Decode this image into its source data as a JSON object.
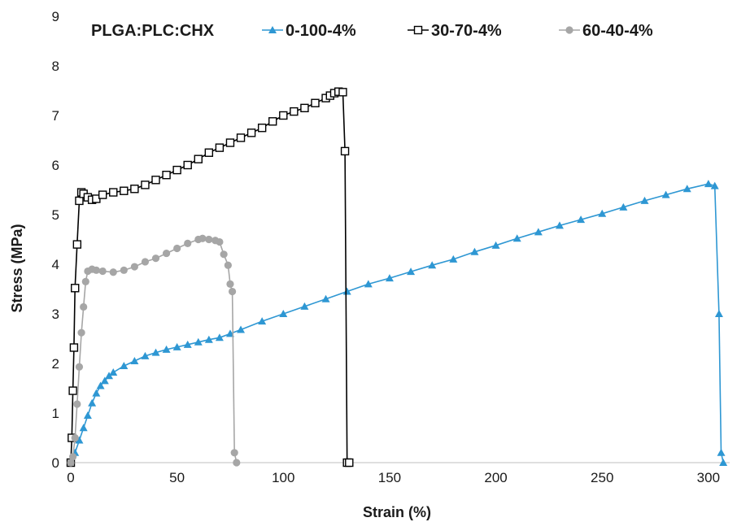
{
  "chart_data": {
    "type": "line",
    "title": "",
    "xlabel": "Strain (%)",
    "ylabel": "Stress (MPa)",
    "xlim": [
      0,
      310
    ],
    "ylim": [
      0,
      9
    ],
    "x_ticks": [
      0,
      50,
      100,
      150,
      200,
      250,
      300
    ],
    "y_ticks": [
      0,
      1,
      2,
      3,
      4,
      5,
      6,
      7,
      8,
      9
    ],
    "grid": false,
    "legend": {
      "placement": "top",
      "title": "PLGA:PLC:CHX"
    },
    "series": [
      {
        "name": "0-100-4%",
        "color": "#2e97d3",
        "marker": "triangle",
        "x": [
          0,
          2,
          4,
          6,
          8,
          10,
          12,
          14,
          16,
          18,
          20,
          25,
          30,
          35,
          40,
          45,
          50,
          55,
          60,
          65,
          70,
          75,
          80,
          90,
          100,
          110,
          120,
          130,
          140,
          150,
          160,
          170,
          180,
          190,
          200,
          210,
          220,
          230,
          240,
          250,
          260,
          270,
          280,
          290,
          300,
          303,
          305,
          306,
          307
        ],
        "y": [
          0,
          0.2,
          0.45,
          0.7,
          0.95,
          1.2,
          1.4,
          1.55,
          1.65,
          1.75,
          1.82,
          1.95,
          2.05,
          2.15,
          2.22,
          2.28,
          2.33,
          2.38,
          2.43,
          2.48,
          2.52,
          2.6,
          2.68,
          2.85,
          3.0,
          3.15,
          3.3,
          3.45,
          3.6,
          3.72,
          3.85,
          3.98,
          4.1,
          4.25,
          4.38,
          4.52,
          4.65,
          4.78,
          4.9,
          5.02,
          5.15,
          5.28,
          5.4,
          5.52,
          5.62,
          5.58,
          3.0,
          0.2,
          0
        ]
      },
      {
        "name": "30-70-4%",
        "color": "#000000",
        "marker": "square-open",
        "x": [
          0,
          0.5,
          1,
          1.5,
          2,
          3,
          4,
          5,
          6,
          8,
          10,
          12,
          15,
          20,
          25,
          30,
          35,
          40,
          45,
          50,
          55,
          60,
          65,
          70,
          75,
          80,
          85,
          90,
          95,
          100,
          105,
          110,
          115,
          120,
          122,
          124,
          126,
          128,
          129,
          130,
          131
        ],
        "y": [
          0,
          0.5,
          1.45,
          2.32,
          3.52,
          4.4,
          5.28,
          5.45,
          5.42,
          5.35,
          5.3,
          5.32,
          5.4,
          5.45,
          5.48,
          5.52,
          5.6,
          5.7,
          5.8,
          5.9,
          6.0,
          6.12,
          6.25,
          6.35,
          6.45,
          6.55,
          6.65,
          6.75,
          6.88,
          7.0,
          7.08,
          7.15,
          7.25,
          7.35,
          7.4,
          7.45,
          7.48,
          7.47,
          6.28,
          0,
          0
        ]
      },
      {
        "name": "60-40-4%",
        "color": "#a6a6a6",
        "marker": "circle",
        "x": [
          0,
          1,
          2,
          3,
          4,
          5,
          6,
          7,
          8,
          10,
          12,
          15,
          20,
          25,
          30,
          35,
          40,
          45,
          50,
          55,
          60,
          62,
          65,
          68,
          70,
          72,
          74,
          75,
          76,
          77,
          78
        ],
        "y": [
          0,
          0.12,
          0.5,
          1.18,
          1.93,
          2.62,
          3.14,
          3.65,
          3.86,
          3.9,
          3.88,
          3.86,
          3.84,
          3.88,
          3.95,
          4.05,
          4.12,
          4.22,
          4.32,
          4.42,
          4.5,
          4.52,
          4.5,
          4.48,
          4.45,
          4.2,
          3.98,
          3.6,
          3.45,
          0.2,
          0
        ]
      }
    ]
  }
}
